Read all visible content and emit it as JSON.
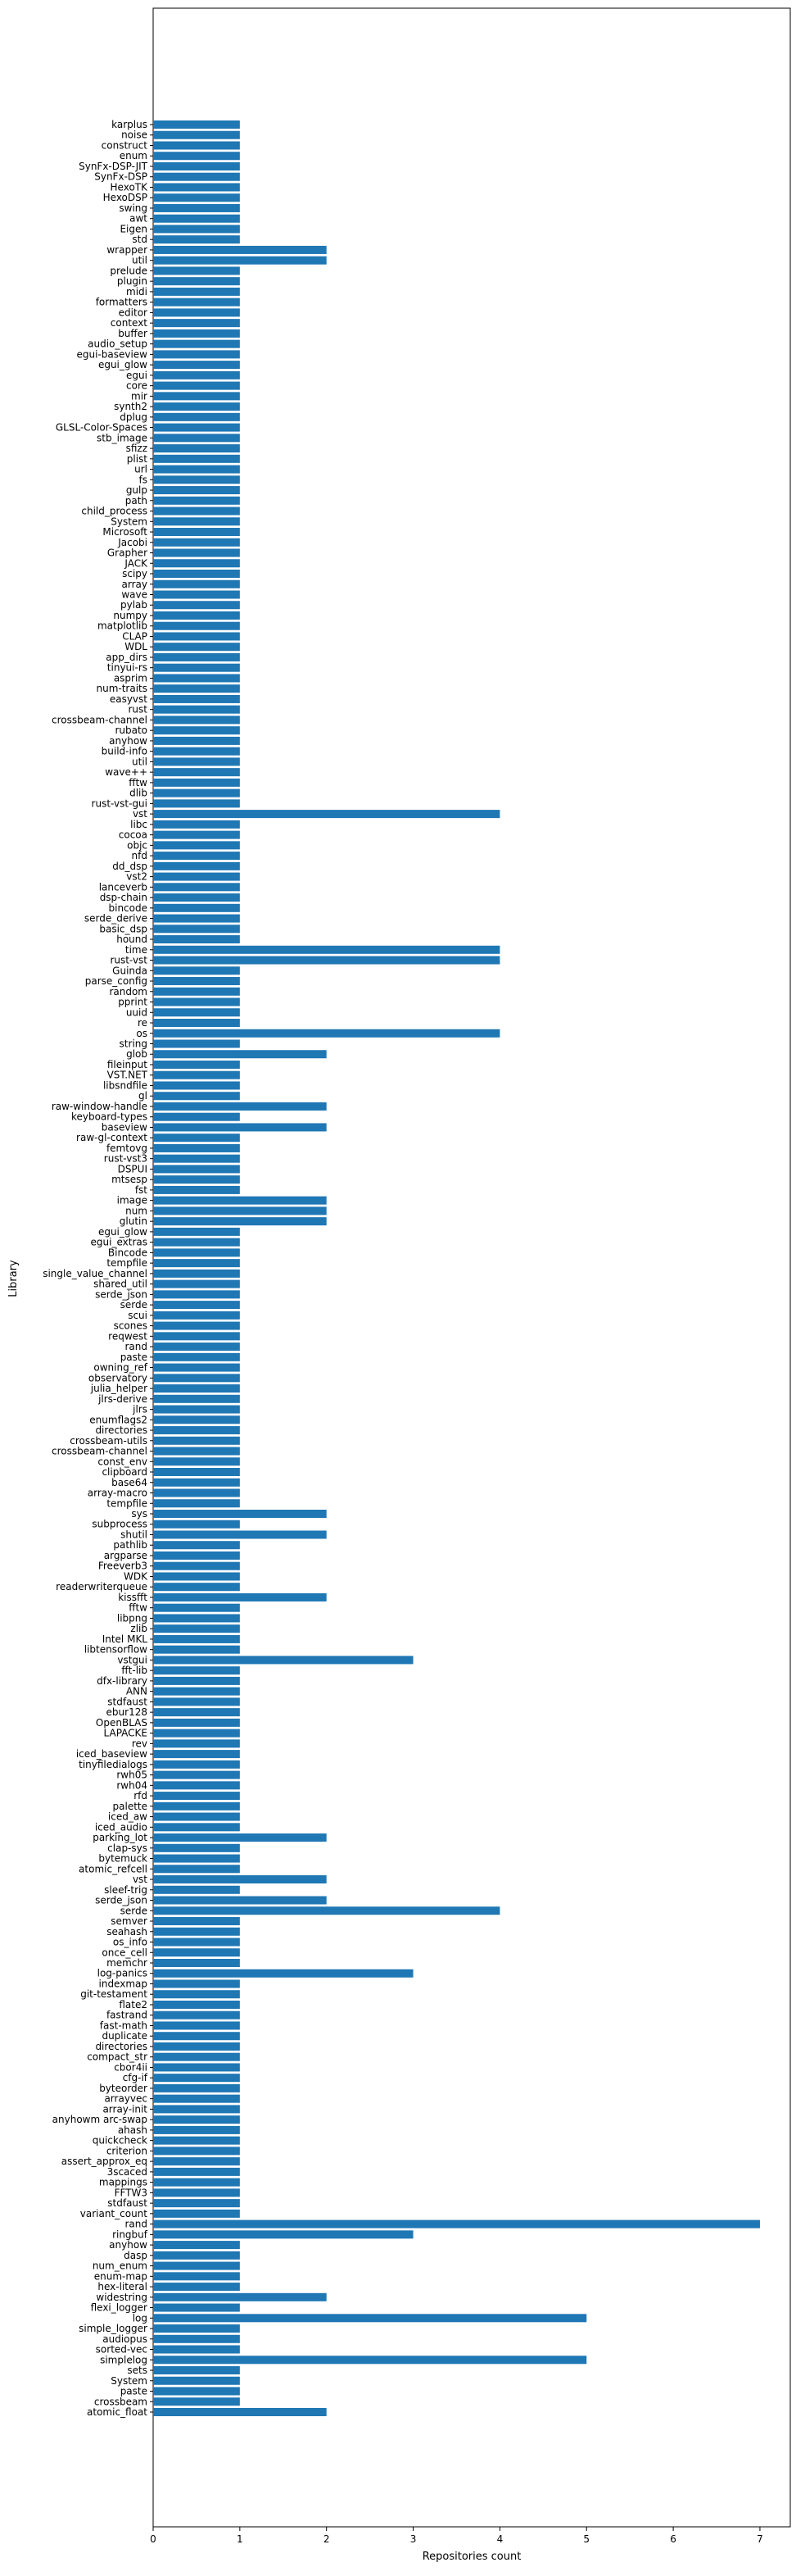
{
  "chart_data": {
    "type": "bar",
    "orientation": "horizontal",
    "title": "",
    "xlabel": "Repositories count",
    "ylabel": "Library",
    "xlim": [
      0,
      7.35
    ],
    "xticks": [
      0,
      1,
      2,
      3,
      4,
      5,
      6,
      7
    ],
    "grid": false,
    "bar_color": "#1f77b4",
    "categories": [
      "karplus",
      "noise",
      "construct",
      "enum",
      "SynFx-DSP-JIT",
      "SynFx-DSP",
      "HexoTK",
      "HexoDSP",
      "swing",
      "awt",
      "Eigen",
      "std",
      "wrapper",
      "util",
      "prelude",
      "plugin",
      "midi",
      "formatters",
      "editor",
      "context",
      "buffer",
      "audio_setup",
      "egui-baseview",
      "egui_glow",
      "egui",
      "core",
      "mir",
      "synth2",
      "dplug",
      "GLSL-Color-Spaces",
      "stb_image",
      "sfizz",
      "plist",
      "url",
      "fs",
      "gulp",
      "path",
      "child_process",
      "System",
      "Microsoft",
      "Jacobi",
      "Grapher",
      "JACK",
      "scipy",
      "array",
      "wave",
      "pylab",
      "numpy",
      "matplotlib",
      "CLAP",
      "WDL",
      "app_dirs",
      "tinyui-rs",
      "asprim",
      "num-traits",
      "easyvst",
      "rust",
      "crossbeam-channel",
      "rubato",
      "anyhow",
      "build-info",
      "util",
      "wave++",
      "fftw",
      "dlib",
      "rust-vst-gui",
      "vst",
      "libc",
      "cocoa",
      "objc",
      "nfd",
      "dd_dsp",
      "vst2",
      "lanceverb",
      "dsp-chain",
      "bincode",
      "serde_derive",
      "basic_dsp",
      "hound",
      "time",
      "rust-vst",
      "Guinda",
      "parse_config",
      "random",
      "pprint",
      "uuid",
      "re",
      "os",
      "string",
      "glob",
      "fileinput",
      "VST.NET",
      "libsndfile",
      "gl",
      "raw-window-handle",
      "keyboard-types",
      "baseview",
      "raw-gl-context",
      "femtovg",
      "rust-vst3",
      "DSPUI",
      "mtsesp",
      "fst",
      "image",
      "num",
      "glutin",
      "egui_glow",
      "egui_extras",
      "Bincode",
      "tempfile",
      "single_value_channel",
      "shared_util",
      "serde_json",
      "serde",
      "scui",
      "scones",
      "reqwest",
      "rand",
      "paste",
      "owning_ref",
      "observatory",
      "julia_helper",
      "jlrs-derive",
      "jlrs",
      "enumflags2",
      "directories",
      "crossbeam-utils",
      "crossbeam-channel",
      "const_env",
      "clipboard",
      "base64",
      "array-macro",
      "tempfile",
      "sys",
      "subprocess",
      "shutil",
      "pathlib",
      "argparse",
      "Freeverb3",
      "WDK",
      "readerwriterqueue",
      "kissfft",
      "fftw",
      "libpng",
      "zlib",
      "Intel MKL",
      "libtensorflow",
      "vstgui",
      "fft-lib",
      "dfx-library",
      "ANN",
      "stdfaust",
      "ebur128",
      "OpenBLAS",
      "LAPACKE",
      "rev",
      "iced_baseview",
      "tinyfiledialogs",
      "rwh05",
      "rwh04",
      "rfd",
      "palette",
      "iced_aw",
      "iced_audio",
      "parking_lot",
      "clap-sys",
      "bytemuck",
      "atomic_refcell",
      "vst",
      "sleef-trig",
      "serde_json",
      "serde",
      "semver",
      "seahash",
      "os_info",
      "once_cell",
      "memchr",
      "log-panics",
      "indexmap",
      "git-testament",
      "flate2",
      "fastrand",
      "fast-math",
      "duplicate",
      "directories",
      "compact_str",
      "cbor4ii",
      "cfg-if",
      "byteorder",
      "arrayvec",
      "array-init",
      "anyhowm arc-swap",
      "ahash",
      "quickcheck",
      "criterion",
      "assert_approx_eq",
      "3scaced",
      "mappings",
      "FFTW3",
      "stdfaust",
      "variant_count",
      "rand",
      "ringbuf",
      "anyhow",
      "dasp",
      "num_enum",
      "enum-map",
      "hex-literal",
      "widestring",
      "flexi_logger",
      "log",
      "simple_logger",
      "audiopus",
      "sorted-vec",
      "simplelog",
      "sets",
      "System",
      "paste",
      "crossbeam",
      "atomic_float"
    ],
    "values": [
      1,
      1,
      1,
      1,
      1,
      1,
      1,
      1,
      1,
      1,
      1,
      1,
      2,
      2,
      1,
      1,
      1,
      1,
      1,
      1,
      1,
      1,
      1,
      1,
      1,
      1,
      1,
      1,
      1,
      1,
      1,
      1,
      1,
      1,
      1,
      1,
      1,
      1,
      1,
      1,
      1,
      1,
      1,
      1,
      1,
      1,
      1,
      1,
      1,
      1,
      1,
      1,
      1,
      1,
      1,
      1,
      1,
      1,
      1,
      1,
      1,
      1,
      1,
      1,
      1,
      1,
      4,
      1,
      1,
      1,
      1,
      1,
      1,
      1,
      1,
      1,
      1,
      1,
      1,
      4,
      4,
      1,
      1,
      1,
      1,
      1,
      1,
      4,
      1,
      2,
      1,
      1,
      1,
      1,
      2,
      1,
      2,
      1,
      1,
      1,
      1,
      1,
      1,
      2,
      2,
      2,
      1,
      1,
      1,
      1,
      1,
      1,
      1,
      1,
      1,
      1,
      1,
      1,
      1,
      1,
      1,
      1,
      1,
      1,
      1,
      1,
      1,
      1,
      1,
      1,
      1,
      1,
      1,
      2,
      1,
      2,
      1,
      1,
      1,
      1,
      1,
      2,
      1,
      1,
      1,
      1,
      1,
      3,
      1,
      1,
      1,
      1,
      1,
      1,
      1,
      1,
      1,
      1,
      1,
      1,
      1,
      1,
      1,
      1,
      2,
      1,
      1,
      1,
      2,
      1,
      2,
      4,
      1,
      1,
      1,
      1,
      1,
      3,
      1,
      1,
      1,
      1,
      1,
      1,
      1,
      1,
      1,
      1,
      1,
      1,
      1,
      1,
      1,
      1,
      1,
      1,
      1,
      1,
      1,
      1,
      1,
      7,
      3,
      1,
      1,
      1,
      1,
      1,
      2,
      1,
      5,
      1,
      1,
      1,
      5,
      1,
      1,
      1,
      1,
      2
    ]
  }
}
